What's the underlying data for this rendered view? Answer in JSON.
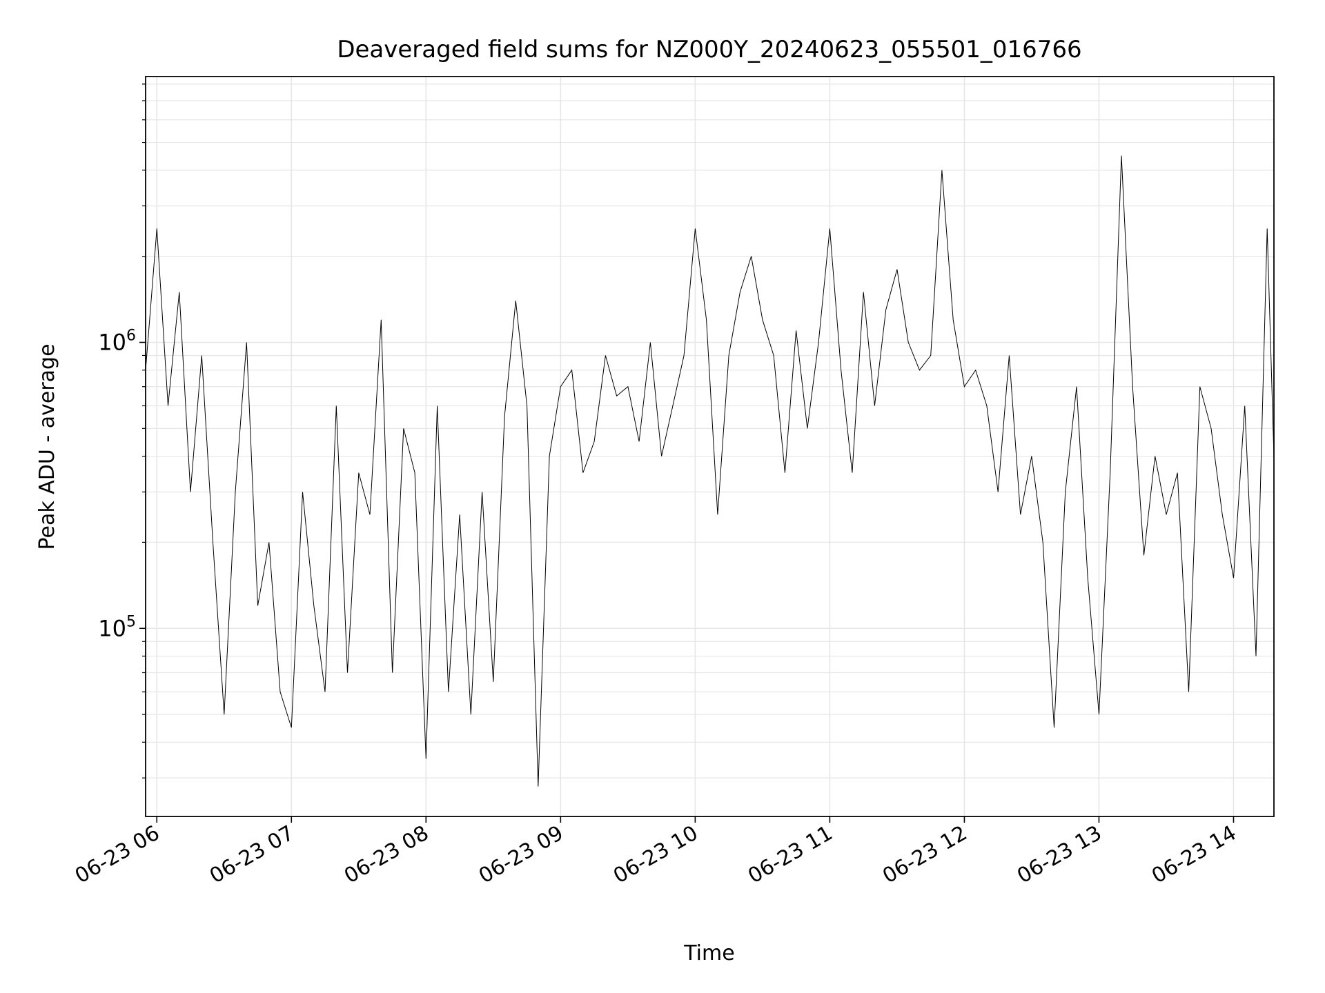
{
  "chart_data": {
    "type": "line",
    "title": "Deaveraged field sums for NZ000Y_20240623_055501_016766",
    "xlabel": "Time",
    "ylabel": "Peak ADU - average",
    "yscale": "log",
    "grid": true,
    "xlim": [
      "06-23 05:55",
      "06-23 14:18"
    ],
    "ylim": [
      22000,
      8500000
    ],
    "x_tick_labels": [
      "06-23 06",
      "06-23 07",
      "06-23 08",
      "06-23 09",
      "06-23 10",
      "06-23 11",
      "06-23 12",
      "06-23 13",
      "06-23 14"
    ],
    "y_tick_labels": [
      {
        "value": 100000,
        "base": "10",
        "exp": "5"
      },
      {
        "value": 1000000,
        "base": "10",
        "exp": "6"
      }
    ],
    "series": [
      {
        "color": "#000000",
        "x": [
          "06-23 05:55",
          "06-23 06:00",
          "06-23 06:05",
          "06-23 06:10",
          "06-23 06:15",
          "06-23 06:20",
          "06-23 06:25",
          "06-23 06:30",
          "06-23 06:35",
          "06-23 06:40",
          "06-23 06:45",
          "06-23 06:50",
          "06-23 06:55",
          "06-23 07:00",
          "06-23 07:05",
          "06-23 07:10",
          "06-23 07:15",
          "06-23 07:20",
          "06-23 07:25",
          "06-23 07:30",
          "06-23 07:35",
          "06-23 07:40",
          "06-23 07:45",
          "06-23 07:50",
          "06-23 07:55",
          "06-23 08:00",
          "06-23 08:05",
          "06-23 08:10",
          "06-23 08:15",
          "06-23 08:20",
          "06-23 08:25",
          "06-23 08:30",
          "06-23 08:35",
          "06-23 08:40",
          "06-23 08:45",
          "06-23 08:50",
          "06-23 08:55",
          "06-23 09:00",
          "06-23 09:05",
          "06-23 09:10",
          "06-23 09:15",
          "06-23 09:20",
          "06-23 09:25",
          "06-23 09:30",
          "06-23 09:35",
          "06-23 09:40",
          "06-23 09:45",
          "06-23 09:50",
          "06-23 09:55",
          "06-23 10:00",
          "06-23 10:05",
          "06-23 10:10",
          "06-23 10:15",
          "06-23 10:20",
          "06-23 10:25",
          "06-23 10:30",
          "06-23 10:35",
          "06-23 10:40",
          "06-23 10:45",
          "06-23 10:50",
          "06-23 10:55",
          "06-23 11:00",
          "06-23 11:05",
          "06-23 11:10",
          "06-23 11:15",
          "06-23 11:20",
          "06-23 11:25",
          "06-23 11:30",
          "06-23 11:35",
          "06-23 11:40",
          "06-23 11:45",
          "06-23 11:50",
          "06-23 11:55",
          "06-23 12:00",
          "06-23 12:05",
          "06-23 12:10",
          "06-23 12:15",
          "06-23 12:20",
          "06-23 12:25",
          "06-23 12:30",
          "06-23 12:35",
          "06-23 12:40",
          "06-23 12:45",
          "06-23 12:50",
          "06-23 12:55",
          "06-23 13:00",
          "06-23 13:05",
          "06-23 13:10",
          "06-23 13:15",
          "06-23 13:20",
          "06-23 13:25",
          "06-23 13:30",
          "06-23 13:35",
          "06-23 13:40",
          "06-23 13:45",
          "06-23 13:50",
          "06-23 13:55",
          "06-23 14:00",
          "06-23 14:05",
          "06-23 14:10",
          "06-23 14:15",
          "06-23 14:18"
        ],
        "values": [
          800000,
          2500000,
          600000,
          1500000,
          300000,
          900000,
          200000,
          50000,
          300000,
          1000000,
          120000,
          200000,
          60000,
          45000,
          300000,
          120000,
          60000,
          600000,
          70000,
          350000,
          250000,
          1200000,
          70000,
          500000,
          350000,
          35000,
          600000,
          60000,
          250000,
          50000,
          300000,
          65000,
          550000,
          1400000,
          600000,
          28000,
          400000,
          700000,
          800000,
          350000,
          450000,
          900000,
          650000,
          700000,
          450000,
          1000000,
          400000,
          600000,
          900000,
          2500000,
          1200000,
          250000,
          900000,
          1500000,
          2000000,
          1200000,
          900000,
          350000,
          1100000,
          500000,
          1000000,
          2500000,
          800000,
          350000,
          1500000,
          600000,
          1300000,
          1800000,
          1000000,
          800000,
          900000,
          4000000,
          1200000,
          700000,
          800000,
          600000,
          300000,
          900000,
          250000,
          400000,
          200000,
          45000,
          300000,
          700000,
          150000,
          50000,
          350000,
          4500000,
          700000,
          180000,
          400000,
          250000,
          350000,
          60000,
          700000,
          500000,
          250000,
          150000,
          600000,
          80000,
          2500000,
          400000
        ]
      }
    ]
  }
}
